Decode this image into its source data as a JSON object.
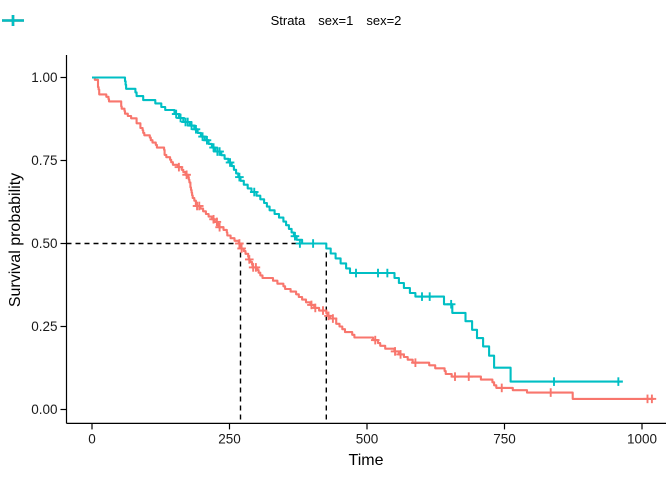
{
  "figure": {
    "background": "#FFFFFF"
  },
  "legend": {
    "title": "Strata",
    "items": [
      {
        "label": "sex=1",
        "color": "#F8766D"
      },
      {
        "label": "sex=2",
        "color": "#00BFC4"
      }
    ]
  },
  "chart_data": {
    "type": "line",
    "subtype": "kaplan_meier_step_survival",
    "title": "",
    "xlabel": "Time",
    "ylabel": "Survival probability",
    "xlim": [
      0,
      1022
    ],
    "ylim": [
      0,
      1
    ],
    "grid": false,
    "legend_position": "top",
    "x_ticks": [
      {
        "v": 0,
        "label": "0"
      },
      {
        "v": 250,
        "label": "250"
      },
      {
        "v": 500,
        "label": "500"
      },
      {
        "v": 750,
        "label": "750"
      },
      {
        "v": 1000,
        "label": "1000"
      }
    ],
    "y_ticks": [
      {
        "v": 0,
        "label": "0.00"
      },
      {
        "v": 0.25,
        "label": "0.25"
      },
      {
        "v": 0.5,
        "label": "0.50"
      },
      {
        "v": 0.75,
        "label": "0.75"
      },
      {
        "v": 1,
        "label": "1.00"
      }
    ],
    "median_reference": {
      "survival": 0.5,
      "times": [
        270,
        426
      ],
      "line_style": "dashed",
      "color": "#000000"
    },
    "series": [
      {
        "name": "sex=1",
        "color": "#F8766D",
        "median_time": 270,
        "steps": [
          [
            0,
            1.0
          ],
          [
            5,
            0.993
          ],
          [
            11,
            0.971
          ],
          [
            12,
            0.964
          ],
          [
            13,
            0.949
          ],
          [
            26,
            0.942
          ],
          [
            30,
            0.935
          ],
          [
            31,
            0.928
          ],
          [
            53,
            0.913
          ],
          [
            54,
            0.906
          ],
          [
            59,
            0.899
          ],
          [
            60,
            0.891
          ],
          [
            65,
            0.884
          ],
          [
            71,
            0.877
          ],
          [
            81,
            0.862
          ],
          [
            88,
            0.848
          ],
          [
            92,
            0.841
          ],
          [
            93,
            0.833
          ],
          [
            95,
            0.826
          ],
          [
            105,
            0.819
          ],
          [
            107,
            0.811
          ],
          [
            110,
            0.804
          ],
          [
            116,
            0.797
          ],
          [
            118,
            0.789
          ],
          [
            131,
            0.782
          ],
          [
            132,
            0.767
          ],
          [
            135,
            0.76
          ],
          [
            142,
            0.752
          ],
          [
            144,
            0.745
          ],
          [
            147,
            0.737
          ],
          [
            156,
            0.73
          ],
          [
            163,
            0.722
          ],
          [
            166,
            0.715
          ],
          [
            170,
            0.707
          ],
          [
            175,
            0.7
          ],
          [
            176,
            0.692
          ],
          [
            177,
            0.684
          ],
          [
            179,
            0.669
          ],
          [
            180,
            0.661
          ],
          [
            181,
            0.653
          ],
          [
            182,
            0.645
          ],
          [
            183,
            0.637
          ],
          [
            186,
            0.629
          ],
          [
            189,
            0.613
          ],
          [
            197,
            0.605
          ],
          [
            202,
            0.597
          ],
          [
            207,
            0.589
          ],
          [
            212,
            0.581
          ],
          [
            218,
            0.573
          ],
          [
            223,
            0.565
          ],
          [
            229,
            0.557
          ],
          [
            230,
            0.549
          ],
          [
            239,
            0.541
          ],
          [
            245,
            0.533
          ],
          [
            246,
            0.524
          ],
          [
            252,
            0.516
          ],
          [
            259,
            0.508
          ],
          [
            267,
            0.5
          ],
          [
            270,
            0.485
          ],
          [
            276,
            0.477
          ],
          [
            279,
            0.469
          ],
          [
            284,
            0.46
          ],
          [
            285,
            0.452
          ],
          [
            288,
            0.444
          ],
          [
            291,
            0.436
          ],
          [
            292,
            0.428
          ],
          [
            301,
            0.42
          ],
          [
            303,
            0.412
          ],
          [
            306,
            0.404
          ],
          [
            310,
            0.396
          ],
          [
            329,
            0.388
          ],
          [
            337,
            0.379
          ],
          [
            348,
            0.371
          ],
          [
            351,
            0.363
          ],
          [
            361,
            0.355
          ],
          [
            371,
            0.347
          ],
          [
            376,
            0.339
          ],
          [
            382,
            0.331
          ],
          [
            389,
            0.323
          ],
          [
            397,
            0.315
          ],
          [
            404,
            0.306
          ],
          [
            413,
            0.298
          ],
          [
            426,
            0.29
          ],
          [
            428,
            0.282
          ],
          [
            433,
            0.274
          ],
          [
            444,
            0.258
          ],
          [
            450,
            0.25
          ],
          [
            455,
            0.242
          ],
          [
            460,
            0.233
          ],
          [
            473,
            0.225
          ],
          [
            477,
            0.217
          ],
          [
            511,
            0.209
          ],
          [
            520,
            0.2
          ],
          [
            524,
            0.192
          ],
          [
            533,
            0.183
          ],
          [
            550,
            0.175
          ],
          [
            558,
            0.166
          ],
          [
            567,
            0.158
          ],
          [
            574,
            0.15
          ],
          [
            583,
            0.141
          ],
          [
            613,
            0.133
          ],
          [
            624,
            0.124
          ],
          [
            641,
            0.116
          ],
          [
            643,
            0.107
          ],
          [
            654,
            0.099
          ],
          [
            707,
            0.09
          ],
          [
            728,
            0.082
          ],
          [
            731,
            0.073
          ],
          [
            735,
            0.065
          ],
          [
            765,
            0.058
          ],
          [
            791,
            0.051
          ],
          [
            874,
            0.032
          ],
          [
            1022,
            0.032
          ]
        ],
        "censor_marks": [
          [
            158,
            0.73
          ],
          [
            172,
            0.707
          ],
          [
            191,
            0.613
          ],
          [
            195,
            0.613
          ],
          [
            221,
            0.573
          ],
          [
            227,
            0.565
          ],
          [
            232,
            0.549
          ],
          [
            268,
            0.5
          ],
          [
            272,
            0.485
          ],
          [
            286,
            0.452
          ],
          [
            293,
            0.428
          ],
          [
            298,
            0.428
          ],
          [
            399,
            0.315
          ],
          [
            406,
            0.306
          ],
          [
            420,
            0.298
          ],
          [
            430,
            0.282
          ],
          [
            438,
            0.274
          ],
          [
            515,
            0.209
          ],
          [
            551,
            0.175
          ],
          [
            561,
            0.166
          ],
          [
            588,
            0.141
          ],
          [
            660,
            0.099
          ],
          [
            685,
            0.099
          ],
          [
            745,
            0.065
          ],
          [
            834,
            0.051
          ],
          [
            1010,
            0.032
          ],
          [
            1018,
            0.032
          ]
        ]
      },
      {
        "name": "sex=2",
        "color": "#00BFC4",
        "median_time": 426,
        "steps": [
          [
            0,
            1.0
          ],
          [
            60,
            0.989
          ],
          [
            61,
            0.978
          ],
          [
            62,
            0.966
          ],
          [
            79,
            0.955
          ],
          [
            81,
            0.944
          ],
          [
            93,
            0.932
          ],
          [
            115,
            0.922
          ],
          [
            126,
            0.911
          ],
          [
            133,
            0.902
          ],
          [
            150,
            0.89
          ],
          [
            158,
            0.878
          ],
          [
            166,
            0.866
          ],
          [
            178,
            0.855
          ],
          [
            186,
            0.844
          ],
          [
            192,
            0.833
          ],
          [
            198,
            0.822
          ],
          [
            205,
            0.811
          ],
          [
            212,
            0.8
          ],
          [
            218,
            0.789
          ],
          [
            224,
            0.777
          ],
          [
            235,
            0.766
          ],
          [
            241,
            0.755
          ],
          [
            248,
            0.744
          ],
          [
            254,
            0.733
          ],
          [
            258,
            0.722
          ],
          [
            262,
            0.711
          ],
          [
            266,
            0.7
          ],
          [
            270,
            0.689
          ],
          [
            276,
            0.677
          ],
          [
            283,
            0.666
          ],
          [
            290,
            0.655
          ],
          [
            299,
            0.644
          ],
          [
            306,
            0.633
          ],
          [
            313,
            0.622
          ],
          [
            318,
            0.611
          ],
          [
            323,
            0.6
          ],
          [
            332,
            0.589
          ],
          [
            340,
            0.578
          ],
          [
            348,
            0.566
          ],
          [
            353,
            0.555
          ],
          [
            358,
            0.544
          ],
          [
            363,
            0.533
          ],
          [
            367,
            0.522
          ],
          [
            372,
            0.511
          ],
          [
            382,
            0.5
          ],
          [
            426,
            0.485
          ],
          [
            434,
            0.47
          ],
          [
            443,
            0.455
          ],
          [
            452,
            0.44
          ],
          [
            462,
            0.425
          ],
          [
            469,
            0.411
          ],
          [
            550,
            0.396
          ],
          [
            558,
            0.381
          ],
          [
            567,
            0.366
          ],
          [
            578,
            0.351
          ],
          [
            588,
            0.34
          ],
          [
            640,
            0.317
          ],
          [
            655,
            0.291
          ],
          [
            679,
            0.266
          ],
          [
            691,
            0.24
          ],
          [
            700,
            0.215
          ],
          [
            711,
            0.19
          ],
          [
            722,
            0.162
          ],
          [
            731,
            0.126
          ],
          [
            761,
            0.084
          ],
          [
            965,
            0.084
          ]
        ],
        "censor_marks": [
          [
            153,
            0.89
          ],
          [
            161,
            0.878
          ],
          [
            170,
            0.866
          ],
          [
            174,
            0.866
          ],
          [
            181,
            0.855
          ],
          [
            189,
            0.844
          ],
          [
            201,
            0.822
          ],
          [
            209,
            0.811
          ],
          [
            221,
            0.789
          ],
          [
            228,
            0.777
          ],
          [
            232,
            0.777
          ],
          [
            251,
            0.744
          ],
          [
            268,
            0.7
          ],
          [
            295,
            0.655
          ],
          [
            369,
            0.522
          ],
          [
            378,
            0.5
          ],
          [
            402,
            0.5
          ],
          [
            480,
            0.411
          ],
          [
            520,
            0.411
          ],
          [
            537,
            0.411
          ],
          [
            600,
            0.34
          ],
          [
            614,
            0.34
          ],
          [
            653,
            0.317
          ],
          [
            840,
            0.084
          ],
          [
            957,
            0.084
          ]
        ]
      }
    ]
  }
}
